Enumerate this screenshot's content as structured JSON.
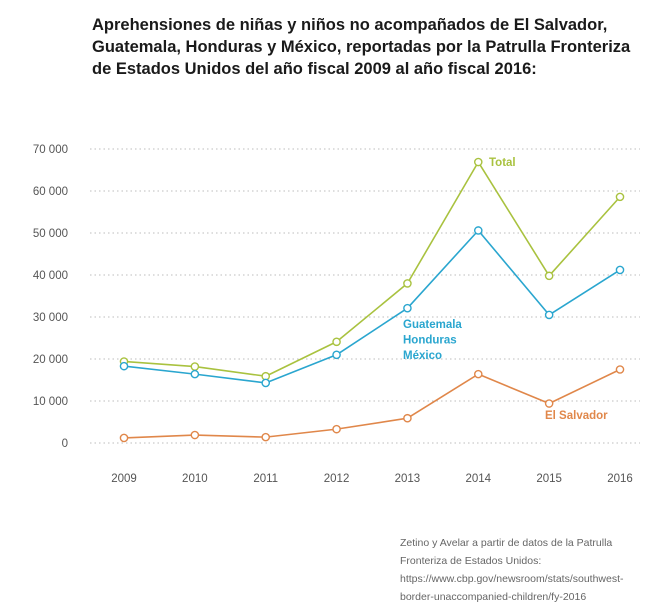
{
  "title": "Aprehensiones de niñas y niños no acompañados de El Salvador, Guatemala, Honduras y México, reportadas por la Patrulla Fronteriza de Estados Unidos del año fiscal 2009 al año fiscal 2016:",
  "source": "Zetino y Avelar a partir de datos de la Patrulla Fronteriza de Estados Unidos: https://www.cbp.gov/newsroom/stats/southwest-border-unaccompanied-children/fy-2016",
  "chart_data": {
    "type": "line",
    "title": "Aprehensiones de niñas y niños no acompañados de El Salvador, Guatemala, Honduras y México, reportadas por la Patrulla Fronteriza de Estados Unidos del año fiscal 2009 al año fiscal 2016:",
    "xlabel": "",
    "ylabel": "",
    "x": [
      "2009",
      "2010",
      "2011",
      "2012",
      "2013",
      "2014",
      "2015",
      "2016"
    ],
    "ylim": [
      0,
      70000
    ],
    "yticks": [
      "0",
      "10 000",
      "20 000",
      "30 000",
      "40 000",
      "50 000",
      "60 000",
      "70 000"
    ],
    "grid": "dotted horizontal",
    "series": [
      {
        "name": "Total",
        "label_lines": [
          "Total"
        ],
        "color": "#a9c23f",
        "values": [
          19400,
          18200,
          15900,
          24100,
          38000,
          66900,
          39800,
          58600
        ]
      },
      {
        "name": "Guatemala Honduras México",
        "label_lines": [
          "Guatemala",
          "Honduras",
          "México"
        ],
        "color": "#2aa6cf",
        "values": [
          18300,
          16400,
          14300,
          21000,
          32100,
          50600,
          30500,
          41200
        ]
      },
      {
        "name": "El Salvador",
        "label_lines": [
          "El Salvador"
        ],
        "color": "#e0874a",
        "values": [
          1200,
          1900,
          1400,
          3300,
          5900,
          16400,
          9400,
          17500
        ]
      }
    ]
  }
}
